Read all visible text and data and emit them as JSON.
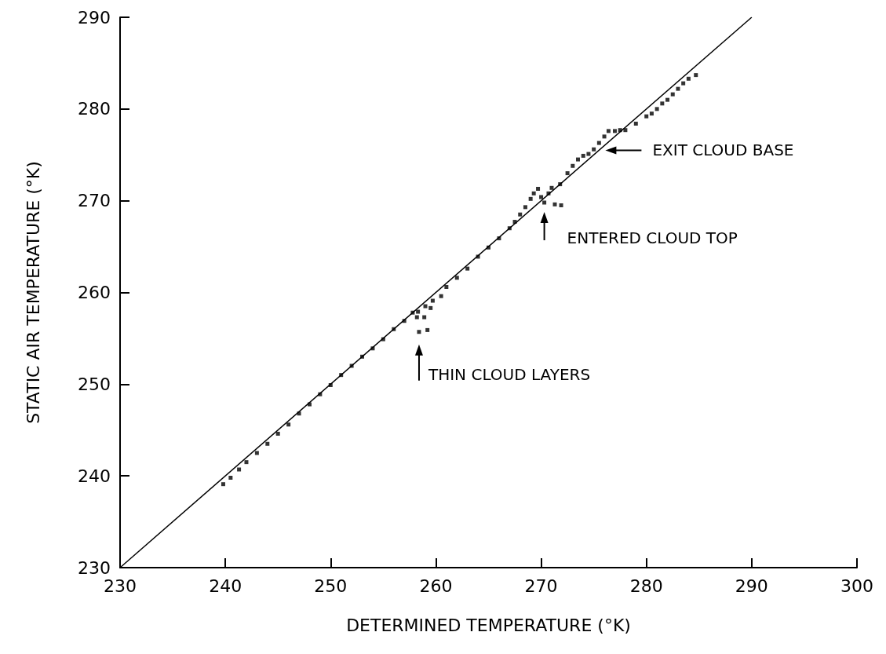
{
  "chart_data": {
    "type": "scatter",
    "xlabel": "DETERMINED TEMPERATURE (°K)",
    "ylabel": "STATIC AIR TEMPERATURE (°K)",
    "xlim": [
      230,
      300
    ],
    "xticks": [
      230,
      240,
      250,
      260,
      270,
      280,
      290,
      300
    ],
    "ylim": [
      230,
      290
    ],
    "yticks": [
      230,
      240,
      250,
      260,
      270,
      280,
      290
    ],
    "grid": false,
    "marker": "square",
    "series": [
      {
        "color": "#000000",
        "x": [
          239.8,
          240.5,
          241.3,
          242,
          243,
          244,
          245,
          246,
          247,
          248,
          249,
          250,
          251,
          252,
          253,
          254,
          255,
          256,
          257,
          257.8,
          258.2,
          258.4,
          258.3,
          259.2,
          258.9,
          259,
          259.5,
          259.7,
          260.5,
          261,
          262,
          263,
          264,
          265,
          266,
          267,
          267.5,
          268,
          268.5,
          269,
          269.3,
          269.7,
          270,
          270.3,
          270.7,
          271,
          271.3,
          271.9,
          271.8,
          272.5,
          273,
          273.5,
          274,
          274.5,
          275,
          275.5,
          276,
          276.4,
          277,
          277.5,
          278,
          279,
          280,
          280.5,
          281,
          281.5,
          282,
          282.5,
          283,
          283.5,
          284,
          284.7
        ],
        "values": [
          239.1,
          239.8,
          240.7,
          241.5,
          242.5,
          243.5,
          244.6,
          245.6,
          246.8,
          247.8,
          248.9,
          249.9,
          251,
          252,
          253,
          253.9,
          254.9,
          256,
          256.9,
          257.8,
          257.3,
          255.7,
          257.9,
          255.9,
          257.3,
          258.5,
          258.3,
          259.1,
          259.6,
          260.6,
          261.6,
          262.6,
          263.9,
          264.9,
          265.9,
          267,
          267.7,
          268.5,
          269.3,
          270.2,
          270.8,
          271.3,
          270.4,
          269.8,
          270.8,
          271.4,
          269.6,
          269.5,
          271.8,
          273,
          273.8,
          274.5,
          274.9,
          275.1,
          275.6,
          276.3,
          277,
          277.6,
          277.6,
          277.7,
          277.7,
          278.4,
          279.2,
          279.5,
          280,
          280.6,
          281,
          281.6,
          282.2,
          282.8,
          283.3,
          283.7
        ]
      },
      {
        "type": "line",
        "color": "#000000",
        "x": [
          230,
          290
        ],
        "values": [
          230,
          290
        ],
        "marker": "none",
        "line_style": "solid"
      }
    ],
    "annotations": [
      {
        "text": "THIN CLOUD LAYERS",
        "x": 258.4,
        "y": 255.7
      },
      {
        "text": "ENTERED CLOUD TOP",
        "x": 270.3,
        "y": 269.8
      },
      {
        "text": "EXIT CLOUD BASE",
        "x": 276.1,
        "y": 275.5
      }
    ]
  }
}
